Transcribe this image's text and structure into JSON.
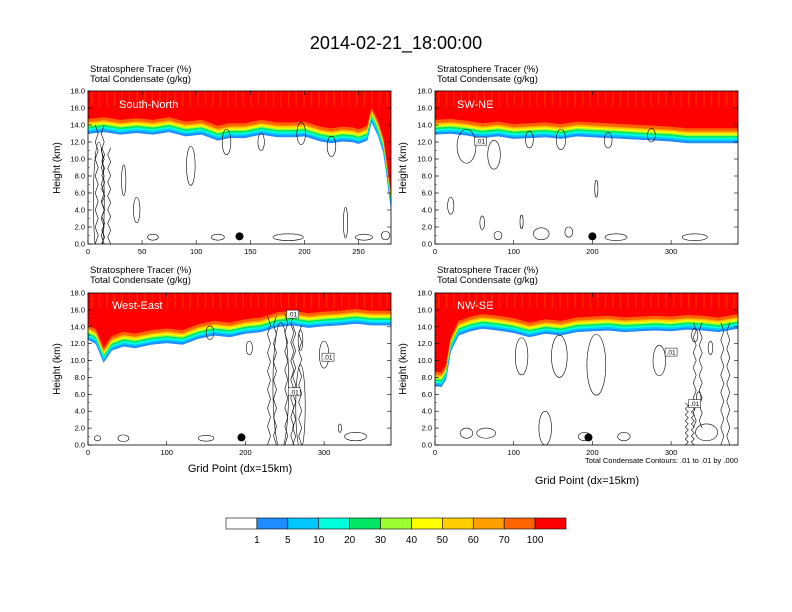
{
  "title": "2014-02-21_18:00:00",
  "colors": {
    "levels": [
      "#ffffff",
      "#1e8cff",
      "#00c8ff",
      "#00ffdc",
      "#00e664",
      "#9bff32",
      "#ffff00",
      "#ffcd00",
      "#ffa000",
      "#ff6400",
      "#ff0000"
    ],
    "contour": "#000000",
    "marker": "#000000"
  },
  "footer": {
    "contour_note": "Total Condensate Contours: .01 to .01 by .000"
  },
  "colorbar": {
    "labels": [
      "1",
      "5",
      "10",
      "20",
      "30",
      "40",
      "50",
      "60",
      "70",
      "100"
    ]
  },
  "chart_data": [
    {
      "type": "heatmap",
      "panel": "South-North",
      "header_line1": "Stratosphere Tracer   (%)",
      "header_line2": "Total Condensate   (g/kg)",
      "ylabel": "Height (km)",
      "xlabel": "",
      "ylim": [
        0,
        18
      ],
      "xlim": [
        0,
        280
      ],
      "y_ticks": [
        "0.0",
        "2.0",
        "4.0",
        "6.0",
        "8.0",
        "10.0",
        "12.0",
        "14.0",
        "16.0",
        "18.0"
      ],
      "x_ticks": [
        0,
        50,
        100,
        150,
        200,
        250
      ],
      "tropopause_km": [
        [
          0,
          14.4
        ],
        [
          15,
          14.6
        ],
        [
          30,
          14.3
        ],
        [
          45,
          14.5
        ],
        [
          60,
          14.3
        ],
        [
          75,
          14.6
        ],
        [
          90,
          14.1
        ],
        [
          105,
          14.3
        ],
        [
          120,
          13.6
        ],
        [
          130,
          13.9
        ],
        [
          145,
          13.9
        ],
        [
          160,
          14.3
        ],
        [
          175,
          14.0
        ],
        [
          190,
          14.0
        ],
        [
          200,
          14.1
        ],
        [
          215,
          13.5
        ],
        [
          225,
          13.3
        ],
        [
          235,
          13.5
        ],
        [
          245,
          13.4
        ],
        [
          250,
          13.2
        ],
        [
          258,
          13.6
        ],
        [
          262,
          15.8
        ],
        [
          268,
          14.2
        ],
        [
          273,
          12.2
        ],
        [
          276,
          9.5
        ],
        [
          278,
          7.5
        ],
        [
          280,
          5.8
        ]
      ],
      "marker_x": 140,
      "contour_labels": []
    },
    {
      "type": "heatmap",
      "panel": "SW-NE",
      "header_line1": "Stratosphere Tracer   (%)",
      "header_line2": "Total Condensate   (g/kg)",
      "ylabel": "Height (km)",
      "xlabel": "",
      "ylim": [
        0,
        18
      ],
      "xlim": [
        0,
        385
      ],
      "y_ticks": [
        "0.0",
        "2.0",
        "4.0",
        "6.0",
        "8.0",
        "10.0",
        "12.0",
        "14.0",
        "16.0",
        "18.0"
      ],
      "x_ticks": [
        0,
        100,
        200,
        300
      ],
      "tropopause_km": [
        [
          0,
          14.3
        ],
        [
          20,
          14.4
        ],
        [
          40,
          14.2
        ],
        [
          60,
          13.9
        ],
        [
          80,
          14.1
        ],
        [
          100,
          13.8
        ],
        [
          120,
          13.9
        ],
        [
          140,
          14.0
        ],
        [
          160,
          13.8
        ],
        [
          180,
          14.1
        ],
        [
          200,
          14.0
        ],
        [
          220,
          13.9
        ],
        [
          240,
          13.8
        ],
        [
          260,
          13.7
        ],
        [
          280,
          13.6
        ],
        [
          300,
          13.5
        ],
        [
          320,
          13.3
        ],
        [
          340,
          13.3
        ],
        [
          360,
          13.3
        ],
        [
          385,
          13.3
        ]
      ],
      "marker_x": 200,
      "contour_labels": [
        ".01"
      ]
    },
    {
      "type": "heatmap",
      "panel": "West-East",
      "header_line1": "Stratosphere Tracer   (%)",
      "header_line2": "Total Condensate   (g/kg)",
      "ylabel": "Height (km)",
      "xlabel": "Grid Point (dx=15km)",
      "ylim": [
        0,
        18
      ],
      "xlim": [
        0,
        385
      ],
      "y_ticks": [
        "0.0",
        "2.0",
        "4.0",
        "6.0",
        "8.0",
        "10.0",
        "12.0",
        "14.0",
        "16.0",
        "18.0"
      ],
      "x_ticks": [
        0,
        100,
        200,
        300
      ],
      "tropopause_km": [
        [
          0,
          13.9
        ],
        [
          10,
          13.4
        ],
        [
          20,
          11.2
        ],
        [
          30,
          12.6
        ],
        [
          45,
          13.1
        ],
        [
          60,
          12.9
        ],
        [
          80,
          13.3
        ],
        [
          100,
          13.5
        ],
        [
          120,
          13.3
        ],
        [
          140,
          14.0
        ],
        [
          160,
          14.4
        ],
        [
          180,
          14.2
        ],
        [
          200,
          14.6
        ],
        [
          220,
          14.8
        ],
        [
          240,
          15.4
        ],
        [
          260,
          15.6
        ],
        [
          280,
          15.3
        ],
        [
          300,
          15.5
        ],
        [
          320,
          15.6
        ],
        [
          340,
          15.8
        ],
        [
          360,
          15.6
        ],
        [
          385,
          15.6
        ]
      ],
      "marker_x": 195,
      "contour_labels": [
        ".01",
        ".01",
        ".01"
      ]
    },
    {
      "type": "heatmap",
      "panel": "NW-SE",
      "header_line1": "Stratosphere Tracer   (%)",
      "header_line2": "Total Condensate   (g/kg)",
      "ylabel": "Height (km)",
      "xlabel": "Grid Point (dx=15km)",
      "ylim": [
        0,
        18
      ],
      "xlim": [
        0,
        385
      ],
      "y_ticks": [
        "0.0",
        "2.0",
        "4.0",
        "6.0",
        "8.0",
        "10.0",
        "12.0",
        "14.0",
        "16.0",
        "18.0"
      ],
      "x_ticks": [
        0,
        100,
        200,
        300
      ],
      "tropopause_km": [
        [
          0,
          8.4
        ],
        [
          8,
          8.3
        ],
        [
          14,
          9.2
        ],
        [
          20,
          12.5
        ],
        [
          30,
          14.4
        ],
        [
          45,
          14.9
        ],
        [
          60,
          15.2
        ],
        [
          80,
          15.0
        ],
        [
          100,
          14.7
        ],
        [
          120,
          14.2
        ],
        [
          140,
          14.6
        ],
        [
          160,
          14.4
        ],
        [
          180,
          14.8
        ],
        [
          200,
          14.9
        ],
        [
          220,
          15.0
        ],
        [
          240,
          14.8
        ],
        [
          260,
          14.9
        ],
        [
          280,
          15.0
        ],
        [
          300,
          14.9
        ],
        [
          320,
          15.1
        ],
        [
          340,
          15.0
        ],
        [
          360,
          14.8
        ],
        [
          385,
          15.2
        ]
      ],
      "marker_x": 195,
      "contour_labels": [
        ".01",
        ".01"
      ]
    }
  ]
}
